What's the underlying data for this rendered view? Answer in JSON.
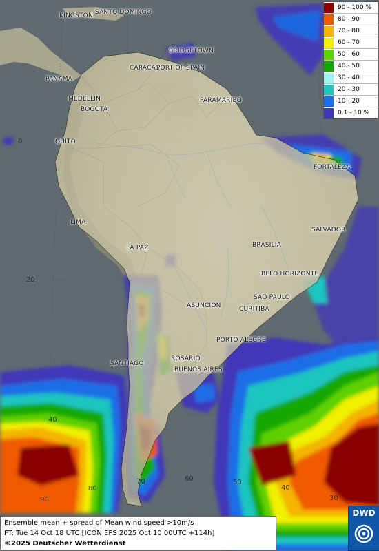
{
  "legend": {
    "items": [
      {
        "label": "90 - 100 %",
        "color": "#8a0000"
      },
      {
        "label": "80 - 90",
        "color": "#f05a00"
      },
      {
        "label": "70 - 80",
        "color": "#f4b400"
      },
      {
        "label": "60 - 70",
        "color": "#f0f000"
      },
      {
        "label": "50 - 60",
        "color": "#5fd000"
      },
      {
        "label": "40 - 50",
        "color": "#12a800"
      },
      {
        "label": "30 - 40",
        "color": "#9ef3ef"
      },
      {
        "label": "20 - 30",
        "color": "#1ec5c0"
      },
      {
        "label": "10 - 20",
        "color": "#1a6ee6"
      },
      {
        "label": "0.1 - 10 %",
        "color": "#4037b8"
      }
    ]
  },
  "cities": {
    "kingston": "KINGSTON",
    "santo_domingo": "SANTO DOMINGO",
    "bridgetown": "BRIDGETOWN",
    "caracas": "CARACAS",
    "port_of_spain": "PORT OF SPAIN",
    "panama": "PANAMA",
    "medellin": "MEDELLIN",
    "bogota": "BOGOTA",
    "paramaribo": "PARAMARIBO",
    "quito": "QUITO",
    "fortaleza": "FORTALEZA",
    "lima": "LIMA",
    "salvador": "SALVADOR",
    "brasilia": "BRASILIA",
    "la_paz": "LA PAZ",
    "belo_horizonte": "BELO HORIZONTE",
    "sao_paulo": "SAO PAULO",
    "asuncion": "ASUNCION",
    "curitiba": "CURITIBA",
    "porto_alegre": "PORTO ALEGRE",
    "rosario": "ROSARIO",
    "buenos_aires": "BUENOS AIRES",
    "santiago": "SANTIAGO"
  },
  "grid_labels": {
    "lat_0": "0",
    "lat_20": "20",
    "lat_40": "40",
    "lat_60": "60",
    "lat_70": "70",
    "lat_80": "80",
    "lat_90": "90",
    "rlat_30": "30",
    "rlat_40": "40",
    "rlat_50": "50",
    "rlat_60": "60"
  },
  "footer": {
    "line1": "Ensemble mean + spread of Mean wind speed >10m/s",
    "line2": "FT: Tue 14 Oct 18 UTC [ICON EPS 2025 Oct 10 00UTC +114h]",
    "line3": "©2025 Deutscher Wetterdienst"
  },
  "logo": {
    "text": "DWD"
  }
}
